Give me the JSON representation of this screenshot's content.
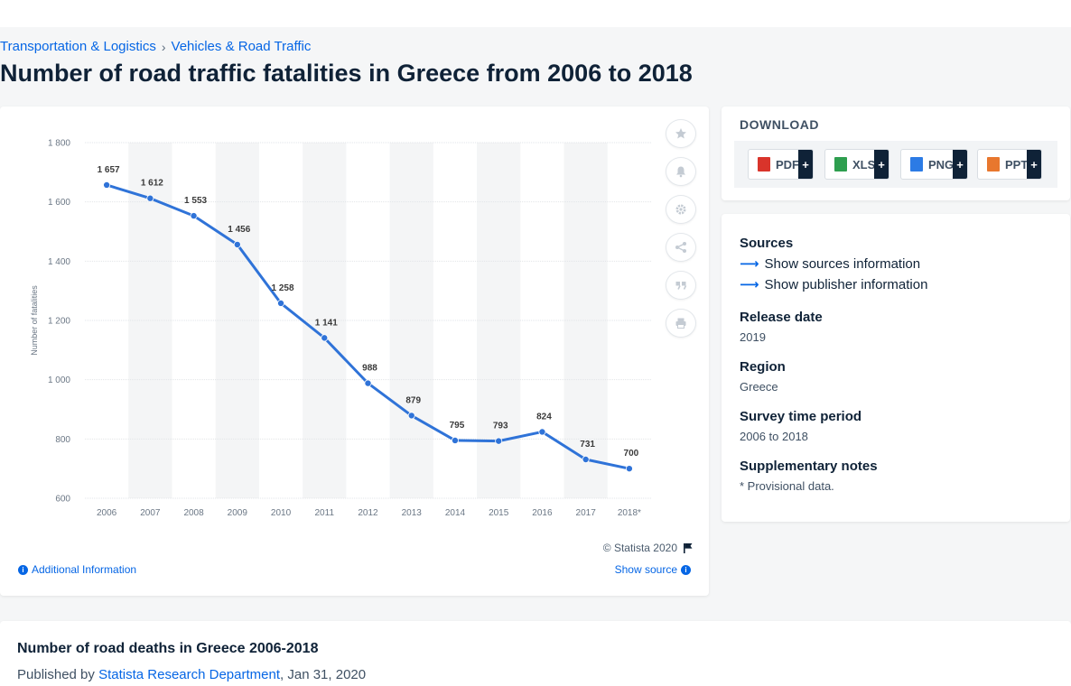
{
  "breadcrumb": {
    "items": [
      "Transportation & Logistics",
      "Vehicles & Road Traffic"
    ],
    "separator": "›"
  },
  "page_title": "Number of road traffic fatalities in Greece from 2006 to 2018",
  "chart_actions": [
    "star-icon",
    "bell-icon",
    "gear-icon",
    "share-icon",
    "quote-icon",
    "print-icon"
  ],
  "chart_footer": {
    "copyright": "© Statista 2020",
    "additional_info": "Additional Information",
    "show_source": "Show source"
  },
  "download": {
    "title": "DOWNLOAD",
    "buttons": [
      {
        "label": "PDF",
        "color": "#d9342b"
      },
      {
        "label": "XLS",
        "color": "#2e9e4f"
      },
      {
        "label": "PNG",
        "color": "#2c7be5"
      },
      {
        "label": "PPT",
        "color": "#e8772e"
      }
    ],
    "plus": "+"
  },
  "info": {
    "sources_label": "Sources",
    "sources_link": "Show sources information",
    "publisher_link": "Show publisher information",
    "release_label": "Release date",
    "release_value": "2019",
    "region_label": "Region",
    "region_value": "Greece",
    "period_label": "Survey time period",
    "period_value": "2006 to 2018",
    "notes_label": "Supplementary notes",
    "notes_value": "* Provisional data."
  },
  "description": {
    "title": "Number of road deaths in Greece 2006-2018",
    "published_prefix": "Published by",
    "publisher": "Statista Research Department",
    "date": ", Jan 31, 2020"
  },
  "colors": {
    "accent": "#0666e5",
    "line": "#2f73d8",
    "navy": "#0f2237"
  },
  "chart_data": {
    "type": "line",
    "categories": [
      "2006",
      "2007",
      "2008",
      "2009",
      "2010",
      "2011",
      "2012",
      "2013",
      "2014",
      "2015",
      "2016",
      "2017",
      "2018*"
    ],
    "series": [
      {
        "values": [
          1657,
          1612,
          1553,
          1456,
          1258,
          1141,
          988,
          879,
          795,
          793,
          824,
          731,
          700
        ]
      }
    ],
    "data_labels": [
      "1 657",
      "1 612",
      "1 553",
      "1 456",
      "1 258",
      "1 141",
      "988",
      "879",
      "795",
      "793",
      "824",
      "731",
      "700"
    ],
    "ylabel": "Number of fatalities",
    "xlabel": "",
    "ylim": [
      600,
      1800
    ],
    "yticks": [
      600,
      800,
      1000,
      1200,
      1400,
      1600,
      1800
    ],
    "ytick_labels": [
      "600",
      "800",
      "1 000",
      "1 200",
      "1 400",
      "1 600",
      "1 800"
    ],
    "grid": true
  }
}
